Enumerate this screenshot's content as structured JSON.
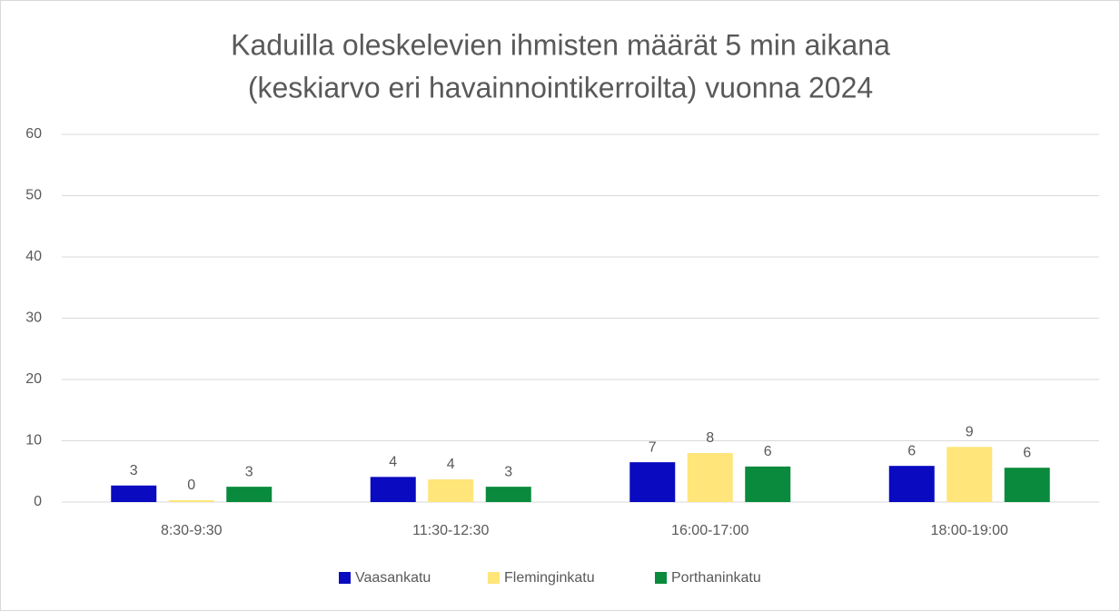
{
  "chart_data": {
    "type": "bar",
    "title": [
      "Kaduilla oleskelevien ihmisten määrät 5 min aikana",
      "(keskiarvo eri havainnointikerroilta) vuonna 2024"
    ],
    "categories": [
      "8:30-9:30",
      "11:30-12:30",
      "16:00-17:00",
      "18:00-19:00"
    ],
    "series": [
      {
        "name": "Vaasankatu",
        "color": "#0a0ac0",
        "values": [
          2.7,
          4.1,
          6.5,
          5.9
        ],
        "value_labels": [
          "3",
          "4",
          "7",
          "6"
        ]
      },
      {
        "name": "Fleminginkatu",
        "color": "#ffe57a",
        "values": [
          0.3,
          3.7,
          8.0,
          9.0
        ],
        "value_labels": [
          "0",
          "4",
          "8",
          "9"
        ]
      },
      {
        "name": "Porthaninkatu",
        "color": "#0a8a3c",
        "values": [
          2.5,
          2.5,
          5.8,
          5.6
        ],
        "value_labels": [
          "3",
          "3",
          "6",
          "6"
        ]
      }
    ],
    "ylim": [
      0,
      60
    ],
    "yticks": [
      0,
      10,
      20,
      30,
      40,
      50,
      60
    ],
    "grid": true,
    "legend": "bottom"
  }
}
